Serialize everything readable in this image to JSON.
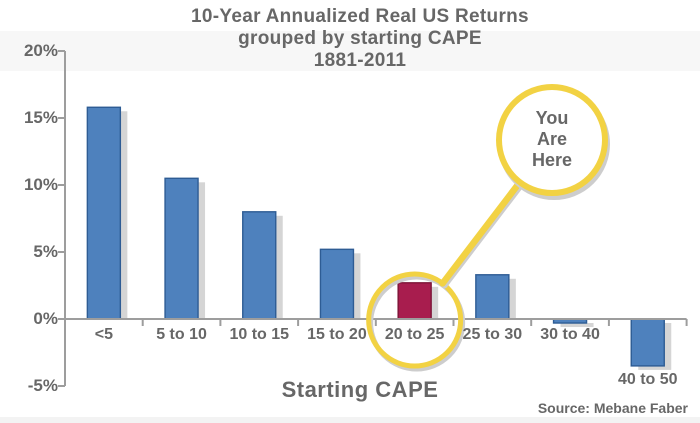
{
  "title": {
    "line1": "10-Year Annualized Real US Returns",
    "line2": "grouped by starting CAPE",
    "line3": "1881-2011"
  },
  "chart_data": {
    "type": "bar",
    "title": "10-Year Annualized Real US Returns grouped by starting CAPE 1881-2011",
    "categories": [
      "<5",
      "5 to 10",
      "10 to 15",
      "15 to 20",
      "20 to 25",
      "25 to 30",
      "30 to 40",
      "40 to 50"
    ],
    "values": [
      15.8,
      10.5,
      8.0,
      5.2,
      2.7,
      3.3,
      -0.3,
      -3.5
    ],
    "xlabel": "Starting CAPE",
    "ylabel": "",
    "ylim": [
      -5,
      20
    ],
    "ytick_labels": [
      "20%",
      "15%",
      "10%",
      "5%",
      "0%",
      "-5%"
    ],
    "ytick_values": [
      20,
      15,
      10,
      5,
      0,
      -5
    ],
    "grid": false,
    "legend": null,
    "bar_color": "#4e81bd",
    "highlight_index": 4,
    "highlight_category": "20 to 25",
    "highlight_color": "#a81d4e",
    "annotation": {
      "lines": [
        "You",
        "Are",
        "Here"
      ],
      "target_category": "20 to 25",
      "circle_color": "#f2d243"
    },
    "source": "Source: Mebane Faber"
  },
  "colors": {
    "text_gray": "#676767",
    "axis_gray": "#9d9d9d",
    "bar_blue": "#4e81bd",
    "bar_blue_border": "#2e5c94",
    "bar_red": "#a81d4e",
    "bar_red_border": "#7d1638",
    "bar_shadow": "#d5d5d5",
    "callout_yellow": "#f2d243",
    "callout_shadow": "#cdcdcd",
    "background": "#ffffff"
  }
}
